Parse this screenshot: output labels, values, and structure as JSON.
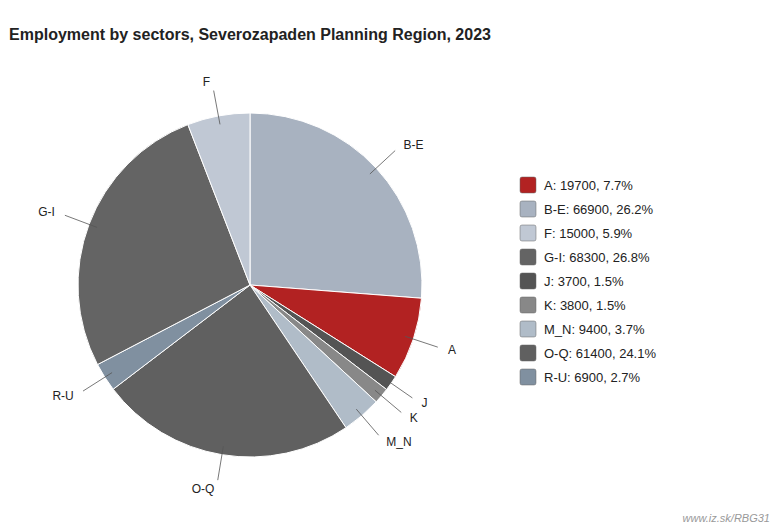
{
  "chart_data": {
    "type": "pie",
    "title": "Employment by sectors, Severozapaden Planning Region, 2023",
    "categories": [
      "B-E",
      "A",
      "J",
      "K",
      "M_N",
      "O-Q",
      "R-U",
      "G-I",
      "F"
    ],
    "values": [
      66900,
      19700,
      3700,
      3800,
      9400,
      61400,
      6900,
      68300,
      15000
    ],
    "colors": [
      "#a8b2c0",
      "#b22222",
      "#545454",
      "#888888",
      "#b0bcc8",
      "#606060",
      "#8090a0",
      "#646464",
      "#c0c8d4"
    ],
    "legend": "right",
    "legend_entries": [
      {
        "label": "A: 19700, 7.7%",
        "color": "#b22222"
      },
      {
        "label": "B-E: 66900, 26.2%",
        "color": "#a8b2c0"
      },
      {
        "label": "F: 15000, 5.9%",
        "color": "#c0c8d4"
      },
      {
        "label": "G-I: 68300, 26.8%",
        "color": "#646464"
      },
      {
        "label": "J: 3700, 1.5%",
        "color": "#545454"
      },
      {
        "label": "K: 3800, 1.5%",
        "color": "#888888"
      },
      {
        "label": "M_N: 9400, 3.7%",
        "color": "#b0bcc8"
      },
      {
        "label": "O-Q: 61400, 24.1%",
        "color": "#606060"
      },
      {
        "label": "R-U: 6900, 2.7%",
        "color": "#8090a0"
      }
    ],
    "annotations": [
      "www.iz.sk/RBG31"
    ]
  }
}
